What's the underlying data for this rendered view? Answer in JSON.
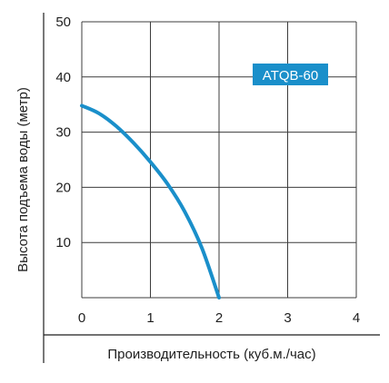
{
  "chart_data": {
    "type": "line",
    "xlabel": "Производительность (куб.м./час)",
    "ylabel": "Высота подъема воды (метр)",
    "xlim": [
      0,
      4
    ],
    "ylim": [
      0,
      50
    ],
    "x_ticks": [
      "0",
      "1",
      "2",
      "3",
      "4"
    ],
    "y_ticks": [
      "10",
      "20",
      "30",
      "40",
      "50"
    ],
    "grid": true,
    "series": [
      {
        "name": "ATQB-60",
        "color": "#1a8fca",
        "x": [
          0,
          0.25,
          0.5,
          0.75,
          1.0,
          1.25,
          1.5,
          1.75,
          2.0
        ],
        "y": [
          34.8,
          33.4,
          31.1,
          28.1,
          24.6,
          20.6,
          15.6,
          9.0,
          0.0
        ]
      }
    ],
    "legend": {
      "label": "ATQB-60",
      "position": "top-right",
      "background": "#1a8fca",
      "text_color": "#ffffff"
    }
  }
}
